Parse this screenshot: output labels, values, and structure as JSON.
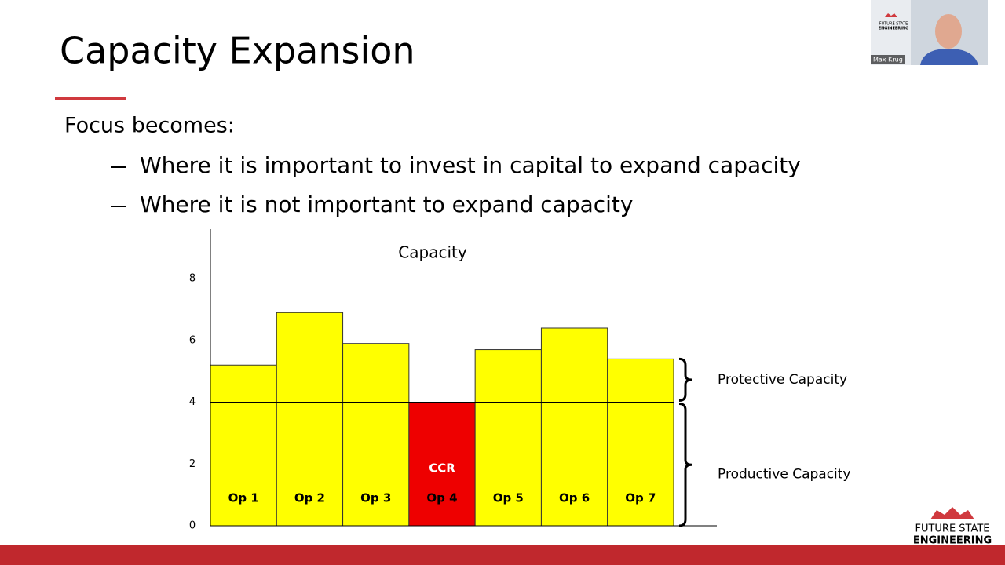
{
  "header": {
    "title": "Capacity Expansion"
  },
  "body": {
    "intro": "Focus becomes:",
    "bullets": [
      "Where it is important to invest in capital to expand capacity",
      "Where it is not important to expand capacity"
    ]
  },
  "chart_data": {
    "type": "bar",
    "title": "Capacity",
    "categories": [
      "Op 1",
      "Op 2",
      "Op 3",
      "Op 4",
      "Op 5",
      "Op 6",
      "Op 7"
    ],
    "values": [
      5.2,
      6.9,
      5.9,
      4,
      5.7,
      6.4,
      5.4
    ],
    "colors": [
      "#ffff00",
      "#ffff00",
      "#ffff00",
      "#ee0000",
      "#ffff00",
      "#ffff00",
      "#ffff00"
    ],
    "bar_notes": [
      null,
      null,
      null,
      "CCR",
      null,
      null,
      null
    ],
    "ylim": [
      0,
      9.6
    ],
    "yticks": [
      0,
      2,
      4,
      6,
      8
    ],
    "reference_line": 4,
    "brackets": [
      "Protective Capacity",
      "Productive Capacity"
    ]
  },
  "video": {
    "name": "Max Krug",
    "logo": [
      "FUTURE STATE",
      "ENGINEERING"
    ]
  },
  "footer": {
    "logo": [
      "FUTURE STATE",
      "ENGINEERING"
    ]
  }
}
